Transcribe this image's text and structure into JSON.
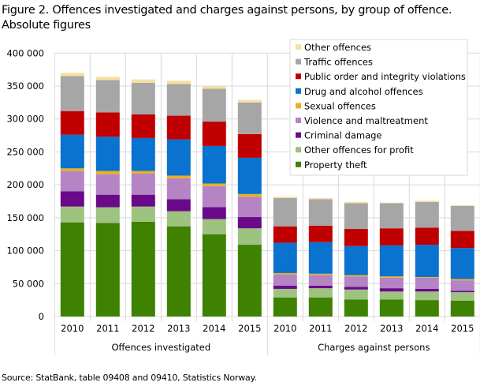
{
  "chart_data": {
    "type": "bar",
    "stacked": true,
    "title": "Figure 2. Offences investigated and charges against persons, by group of offence. Absolute figures",
    "source": "Source: StatBank, table 09408 and 09410, Statistics Norway.",
    "groups": [
      {
        "label": "Offences investigated",
        "categories": [
          "2010",
          "2011",
          "2012",
          "2013",
          "2014",
          "2015"
        ]
      },
      {
        "label": "Charges against persons",
        "categories": [
          "2010",
          "2011",
          "2012",
          "2013",
          "2014",
          "2015"
        ]
      }
    ],
    "ylim": [
      0,
      400000
    ],
    "yticks": [
      "0",
      "50 000",
      "100 000",
      "150 000",
      "200 000",
      "250 000",
      "300 000",
      "350 000",
      "400 000"
    ],
    "grid": true,
    "legend_position": "top-right",
    "series": [
      {
        "name": "Property theft",
        "color": "#3f8100",
        "values": [
          143000,
          142000,
          144000,
          137000,
          125000,
          109000,
          29000,
          29000,
          26000,
          26000,
          25000,
          24000
        ]
      },
      {
        "name": "Other offences for profit",
        "color": "#9ec27f",
        "values": [
          24000,
          24000,
          23000,
          23000,
          23000,
          25000,
          13000,
          14000,
          15000,
          12000,
          13000,
          13000
        ]
      },
      {
        "name": "Criminal damage",
        "color": "#6a0a8a",
        "values": [
          23000,
          19000,
          18000,
          18000,
          18000,
          17000,
          5000,
          4000,
          4000,
          5000,
          4000,
          2000
        ]
      },
      {
        "name": "Violence and maltreatment",
        "color": "#b484c4",
        "values": [
          31000,
          31000,
          32000,
          32000,
          32000,
          31000,
          17000,
          16000,
          16000,
          16000,
          17000,
          16000
        ]
      },
      {
        "name": "Sexual offences",
        "color": "#e9b021",
        "values": [
          4000,
          5000,
          4000,
          4000,
          4000,
          4000,
          2000,
          2000,
          2000,
          2000,
          1000,
          2000
        ]
      },
      {
        "name": "Drug and alcohol offences",
        "color": "#0a72cf",
        "values": [
          51000,
          52000,
          50000,
          55000,
          57000,
          55000,
          46000,
          48000,
          44000,
          47000,
          49000,
          47000
        ]
      },
      {
        "name": "Public order and integrity violations",
        "color": "#c00000",
        "values": [
          36000,
          37000,
          36000,
          36000,
          37000,
          36000,
          25000,
          25000,
          26000,
          26000,
          26000,
          26000
        ]
      },
      {
        "name": "Traffic offences",
        "color": "#a6a6a6",
        "values": [
          53000,
          49000,
          48000,
          48000,
          50000,
          48000,
          43000,
          40000,
          39000,
          38000,
          39000,
          38000
        ]
      },
      {
        "name": "Other offences",
        "color": "#f6dfa0",
        "values": [
          5000,
          5000,
          5000,
          5000,
          4000,
          4000,
          2000,
          2000,
          2000,
          1000,
          2000,
          1000
        ]
      }
    ]
  }
}
